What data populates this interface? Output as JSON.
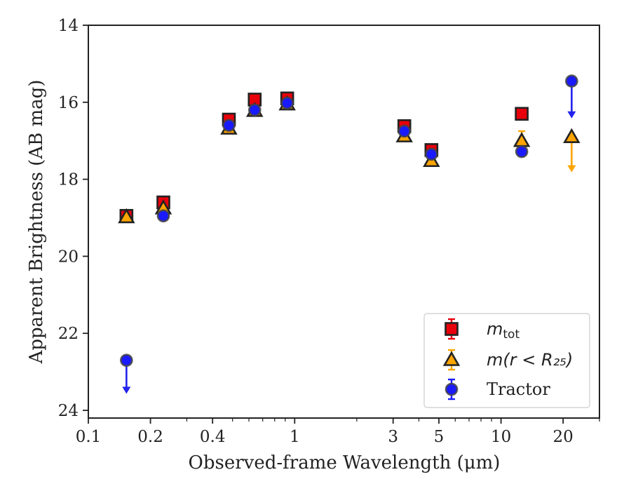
{
  "chart_data": {
    "type": "scatter",
    "xscale": "log",
    "xlim": [
      0.1,
      30
    ],
    "ylim": [
      24.2,
      14.0
    ],
    "y_inverted": true,
    "xlabel": "Observed-frame Wavelength (μm)",
    "ylabel": "Apparent Brightness (AB mag)",
    "x_ticks": [
      {
        "value": 0.1,
        "label": "0.1"
      },
      {
        "value": 0.2,
        "label": "0.2"
      },
      {
        "value": 0.4,
        "label": "0.4"
      },
      {
        "value": 1,
        "label": "1"
      },
      {
        "value": 3,
        "label": "3"
      },
      {
        "value": 5,
        "label": "5"
      },
      {
        "value": 10,
        "label": "10"
      },
      {
        "value": 20,
        "label": "20"
      }
    ],
    "y_ticks": [
      {
        "value": 14,
        "label": "14"
      },
      {
        "value": 16,
        "label": "16"
      },
      {
        "value": 18,
        "label": "18"
      },
      {
        "value": 20,
        "label": "20"
      },
      {
        "value": 22,
        "label": "22"
      },
      {
        "value": 24,
        "label": "24"
      }
    ],
    "legend": {
      "position": "lower right",
      "entries": [
        {
          "label_main": "m",
          "label_sub": "tot",
          "marker": "square",
          "color": "#e8000b"
        },
        {
          "label": "m(r < R₂₅)",
          "marker": "triangle",
          "color": "#ffa500"
        },
        {
          "label": "Tractor",
          "marker": "circle",
          "color": "#1a1aff"
        }
      ]
    },
    "series": [
      {
        "name": "m_tot",
        "marker": "square",
        "face_color": "#e8000b",
        "edge_color": "#222222",
        "points": [
          {
            "x": 0.153,
            "y": 18.95
          },
          {
            "x": 0.231,
            "y": 18.6
          },
          {
            "x": 0.48,
            "y": 16.45
          },
          {
            "x": 0.64,
            "y": 15.93
          },
          {
            "x": 0.92,
            "y": 15.9
          },
          {
            "x": 3.4,
            "y": 16.62
          },
          {
            "x": 4.6,
            "y": 17.24
          },
          {
            "x": 12.6,
            "y": 16.3
          }
        ]
      },
      {
        "name": "m(r < R25)",
        "marker": "triangle",
        "face_color": "#ffa500",
        "edge_color": "#222222",
        "points": [
          {
            "x": 0.153,
            "y": 18.98
          },
          {
            "x": 0.231,
            "y": 18.75
          },
          {
            "x": 0.48,
            "y": 16.68
          },
          {
            "x": 0.64,
            "y": 16.22
          },
          {
            "x": 0.92,
            "y": 16.05
          },
          {
            "x": 3.4,
            "y": 16.88
          },
          {
            "x": 4.6,
            "y": 17.52
          },
          {
            "x": 12.6,
            "y": 17.0,
            "err": 0.25
          },
          {
            "x": 22.0,
            "y": 16.9,
            "upper_limit_to": 17.8
          }
        ]
      },
      {
        "name": "Tractor",
        "marker": "circle",
        "face_color": "#1a1aff",
        "edge_color": "#444444",
        "points": [
          {
            "x": 0.153,
            "y": 22.7,
            "upper_limit_to": 23.55
          },
          {
            "x": 0.231,
            "y": 18.95
          },
          {
            "x": 0.48,
            "y": 16.6
          },
          {
            "x": 0.64,
            "y": 16.2
          },
          {
            "x": 0.92,
            "y": 16.02
          },
          {
            "x": 3.4,
            "y": 16.75
          },
          {
            "x": 4.6,
            "y": 17.35
          },
          {
            "x": 12.6,
            "y": 17.28
          },
          {
            "x": 22.0,
            "y": 15.45,
            "upper_limit_to": 16.4
          }
        ]
      }
    ]
  }
}
